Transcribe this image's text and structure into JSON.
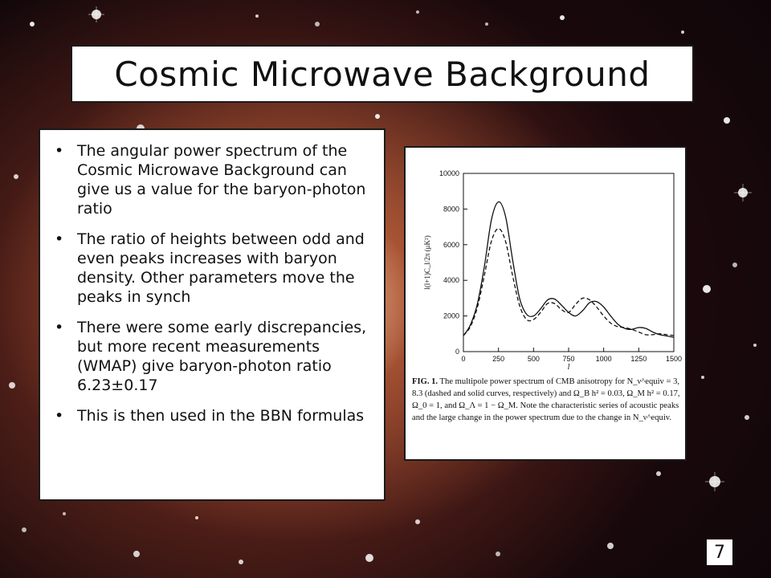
{
  "slide": {
    "title": "Cosmic Microwave Background",
    "page_number": "7",
    "bullets": [
      "The angular power spectrum of the Cosmic Microwave Background can give us a value for the baryon-photon ratio",
      "The ratio of heights between odd and even peaks increases with baryon density. Other parameters move the peaks in synch",
      "There were some early discrepancies, but more recent measurements (WMAP) give baryon-photon ratio 6.23±0.17",
      "This is then used in the BBN formulas"
    ],
    "figure": {
      "caption_label": "FIG. 1.",
      "caption_text": "The multipole power spectrum of CMB anisotropy for N_ν^equiv = 3, 8.3 (dashed and solid curves, respectively) and Ω_B h² = 0.03, Ω_M h² = 0.17, Ω_0 = 1, and Ω_Λ = 1 − Ω_M. Note the characteristic series of acoustic peaks and the large change in the power spectrum due to the change in N_ν^equiv."
    }
  },
  "chart_data": {
    "type": "line",
    "xlabel": "l",
    "ylabel": "l(l+1)C_l/2π (μK²)",
    "xlim": [
      0,
      1500
    ],
    "ylim": [
      0,
      10000
    ],
    "x_ticks": [
      "0",
      "250",
      "500",
      "750",
      "1000",
      "1250",
      "1500"
    ],
    "y_ticks": [
      "0",
      "2000",
      "4000",
      "6000",
      "8000",
      "10000"
    ],
    "series": [
      {
        "style": "solid",
        "x": [
          0,
          50,
          100,
          150,
          200,
          250,
          300,
          350,
          400,
          450,
          500,
          550,
          600,
          650,
          700,
          750,
          800,
          850,
          900,
          950,
          1000,
          1050,
          1100,
          1150,
          1200,
          1250,
          1300,
          1350,
          1400,
          1450,
          1500
        ],
        "y": [
          900,
          1500,
          2700,
          4800,
          7400,
          8400,
          7600,
          5200,
          3000,
          2100,
          2000,
          2400,
          2900,
          2950,
          2600,
          2200,
          2000,
          2300,
          2750,
          2800,
          2500,
          2000,
          1550,
          1300,
          1250,
          1350,
          1300,
          1100,
          950,
          880,
          800
        ]
      },
      {
        "style": "dashed",
        "x": [
          0,
          50,
          100,
          150,
          200,
          250,
          300,
          350,
          400,
          450,
          500,
          550,
          600,
          650,
          700,
          750,
          800,
          850,
          900,
          950,
          1000,
          1050,
          1100,
          1150,
          1200,
          1250,
          1300,
          1350,
          1400,
          1450,
          1500
        ],
        "y": [
          900,
          1400,
          2500,
          4300,
          6200,
          6900,
          6200,
          4300,
          2600,
          1800,
          1800,
          2200,
          2700,
          2700,
          2350,
          2200,
          2650,
          3000,
          2900,
          2500,
          2000,
          1600,
          1400,
          1350,
          1250,
          1100,
          950,
          950,
          1000,
          950,
          900
        ]
      }
    ]
  }
}
